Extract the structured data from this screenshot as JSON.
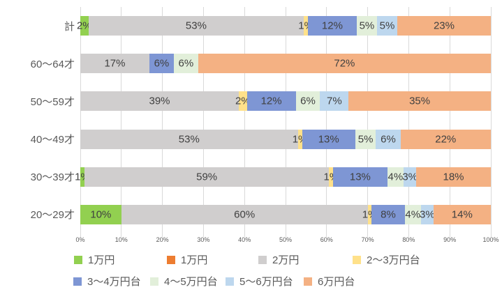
{
  "chart_data": {
    "type": "bar",
    "orientation": "horizontal-stacked",
    "title": "",
    "categories": [
      "計",
      "60〜64才",
      "50〜59才",
      "40〜49才",
      "30〜39才",
      "20〜29才"
    ],
    "series": [
      {
        "name": "1万円",
        "color": "#92D050",
        "values": [
          2,
          0,
          0,
          0,
          1,
          10
        ]
      },
      {
        "name": "1万円",
        "color": "#ED7D31",
        "values": [
          0,
          0,
          0,
          0,
          0,
          0
        ]
      },
      {
        "name": "2万円",
        "color": "#D0CECE",
        "values": [
          53,
          17,
          39,
          53,
          59,
          60
        ]
      },
      {
        "name": "2〜3万円台",
        "color": "#FFE18A",
        "values": [
          1,
          0,
          2,
          1,
          1,
          1
        ]
      },
      {
        "name": "3〜4万円台",
        "color": "#7E96D4",
        "values": [
          12,
          6,
          12,
          13,
          13,
          8
        ]
      },
      {
        "name": "4〜5万円台",
        "color": "#E2EFDA",
        "values": [
          5,
          6,
          6,
          5,
          4,
          4
        ]
      },
      {
        "name": "5〜6万円台",
        "color": "#BDD7EE",
        "values": [
          5,
          0,
          7,
          6,
          3,
          3
        ]
      },
      {
        "name": "6万円台",
        "color": "#F4B183",
        "values": [
          23,
          72,
          35,
          22,
          18,
          14
        ]
      }
    ],
    "x_ticks": [
      "0%",
      "10%",
      "20%",
      "30%",
      "40%",
      "50%",
      "60%",
      "70%",
      "80%",
      "90%",
      "100%"
    ],
    "xlim": [
      0,
      100
    ],
    "grid": true,
    "legend_position": "bottom",
    "data_label_suffix": "%"
  },
  "colors": {
    "grid": "#D9D9D9",
    "data_label_text": "#404040",
    "axis_text": "#595959",
    "background": "#FFFFFF"
  }
}
